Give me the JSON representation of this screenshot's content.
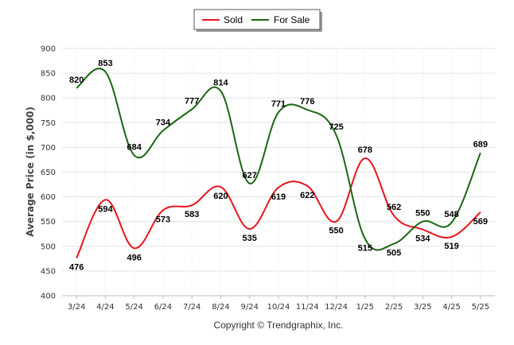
{
  "chart_data": {
    "type": "line",
    "ylabel": "Average Price (in $,000)",
    "categories": [
      "3/24",
      "4/24",
      "5/24",
      "6/24",
      "7/24",
      "8/24",
      "9/24",
      "10/24",
      "11/24",
      "12/24",
      "1/25",
      "2/25",
      "3/25",
      "4/25",
      "5/25"
    ],
    "ylim": [
      400,
      900
    ],
    "yticks": [
      400,
      450,
      500,
      550,
      600,
      650,
      700,
      750,
      800,
      850,
      900
    ],
    "grid": true,
    "legend_position": "top-center",
    "series": [
      {
        "name": "Sold",
        "color": "#e8141b",
        "values": [
          476,
          594,
          496,
          573,
          583,
          620,
          535,
          619,
          622,
          550,
          678,
          562,
          534,
          519,
          569
        ]
      },
      {
        "name": "For Sale",
        "color": "#1a6612",
        "values": [
          820,
          853,
          684,
          734,
          777,
          814,
          627,
          771,
          776,
          725,
          515,
          505,
          550,
          548,
          689
        ]
      }
    ],
    "caption": "Copyright © Trendgraphix, Inc."
  }
}
